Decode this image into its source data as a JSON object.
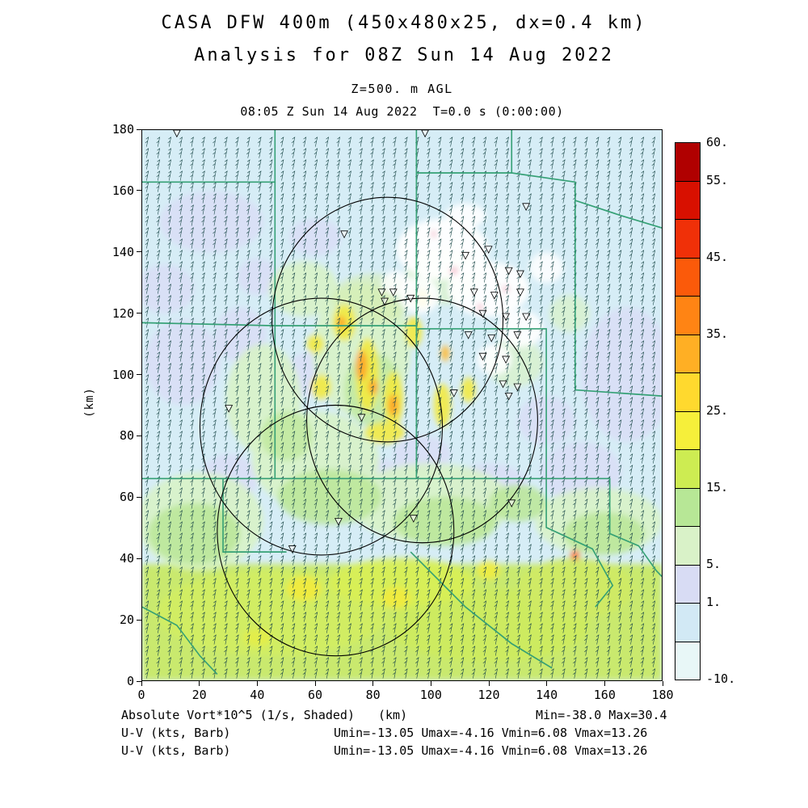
{
  "chart_data": {
    "type": "heatmap",
    "titles": {
      "main": "CASA DFW 400m (450x480x25, dx=0.4 km)",
      "sub": "Analysis for 08Z Sun 14 Aug 2022",
      "level": "Z=500. m AGL",
      "time": "08:05 Z Sun 14 Aug 2022  T=0.0 s (0:00:00)"
    },
    "field_name": "Absolute Vort*10^5 (1/s, Shaded)",
    "stats": {
      "min": -38.0,
      "max": 30.4,
      "umin": -13.05,
      "umax": -4.16,
      "vmin": 6.08,
      "vmax": 13.26,
      "wind_units": "kts"
    },
    "footer": {
      "line1_left": "Absolute Vort*10^5 (1/s, Shaded)",
      "line1_center": "(km)",
      "line1_right": "Min=-38.0 Max=30.4",
      "uv_lines": [
        {
          "label": "U-V (kts, Barb)",
          "stats": "Umin=-13.05 Umax=-4.16 Vmin=6.08 Vmax=13.26"
        },
        {
          "label": "U-V (kts, Barb)",
          "stats": "Umin=-13.05 Umax=-4.16 Vmin=6.08 Vmax=13.26"
        }
      ]
    },
    "axes": {
      "xlabel": "(km)",
      "ylabel": "(km)",
      "x_range": [
        0,
        180
      ],
      "y_range": [
        0,
        180
      ],
      "x_ticks": [
        0,
        20,
        40,
        60,
        80,
        100,
        120,
        140,
        160,
        180
      ],
      "y_ticks": [
        0,
        20,
        40,
        60,
        80,
        100,
        120,
        140,
        160,
        180
      ]
    },
    "colorbar": {
      "levels": [
        -10,
        1,
        5,
        15,
        25,
        35,
        45,
        55,
        60
      ],
      "tick_labels": [
        "-10.",
        "1.",
        "5.",
        "15.",
        "25.",
        "35.",
        "45.",
        "55.",
        "60."
      ],
      "ticks": [
        {
          "label": "60.",
          "f": 1.0
        },
        {
          "label": "55.",
          "f": 0.9286
        },
        {
          "label": "45.",
          "f": 0.7857
        },
        {
          "label": "35.",
          "f": 0.6429
        },
        {
          "label": "25.",
          "f": 0.5
        },
        {
          "label": "15.",
          "f": 0.3571
        },
        {
          "label": "5.",
          "f": 0.2143
        },
        {
          "label": "1.",
          "f": 0.1429
        },
        {
          "label": "-10.",
          "f": 0.0
        }
      ],
      "segment_colors": [
        "#e8f7f7",
        "#d2e9f5",
        "#d8dcf4",
        "#d9f2c8",
        "#b7e796",
        "#cdec52",
        "#f6ef3a",
        "#ffd92e",
        "#ffaf24",
        "#ff8414",
        "#fb5a0a",
        "#f03008",
        "#d81000",
        "#b00000"
      ]
    },
    "map": {
      "base_color": "#d6edf6",
      "boundary_color": "#35a075",
      "band": {
        "y0": 0,
        "y1": 38,
        "color": "#c9e96e"
      },
      "regions": [
        {
          "x": 24,
          "y": 150,
          "rx": 18,
          "ry": 10,
          "c": "#dadef6"
        },
        {
          "x": 8,
          "y": 128,
          "rx": 10,
          "ry": 8,
          "c": "#dadef6"
        },
        {
          "x": 14,
          "y": 104,
          "rx": 13,
          "ry": 14,
          "c": "#dadef6"
        },
        {
          "x": 34,
          "y": 113,
          "rx": 9,
          "ry": 9,
          "c": "#dadef6"
        },
        {
          "x": 57,
          "y": 100,
          "rx": 8,
          "ry": 7,
          "c": "#dadef6"
        },
        {
          "x": 168,
          "y": 100,
          "rx": 16,
          "ry": 22,
          "c": "#dadef6"
        },
        {
          "x": 152,
          "y": 68,
          "rx": 14,
          "ry": 10,
          "c": "#dadef6"
        },
        {
          "x": 120,
          "y": 63,
          "rx": 14,
          "ry": 8,
          "c": "#dadef6"
        },
        {
          "x": 78,
          "y": 64,
          "rx": 16,
          "ry": 9,
          "c": "#dadef6"
        },
        {
          "x": 30,
          "y": 66,
          "rx": 10,
          "ry": 8,
          "c": "#dadef6"
        },
        {
          "x": 97,
          "y": 74,
          "rx": 10,
          "ry": 6,
          "c": "#dadef6"
        },
        {
          "x": 140,
          "y": 85,
          "rx": 10,
          "ry": 8,
          "c": "#dadef6"
        },
        {
          "x": 60,
          "y": 145,
          "rx": 9,
          "ry": 6,
          "c": "#dadef6"
        },
        {
          "x": 40,
          "y": 132,
          "rx": 7,
          "ry": 6,
          "c": "#dadef6"
        },
        {
          "x": 20,
          "y": 52,
          "rx": 22,
          "ry": 16,
          "c": "#d8f2c6"
        },
        {
          "x": 60,
          "y": 72,
          "rx": 22,
          "ry": 16,
          "c": "#d8f2c6"
        },
        {
          "x": 100,
          "y": 58,
          "rx": 28,
          "ry": 13,
          "c": "#d8f2c6"
        },
        {
          "x": 158,
          "y": 52,
          "rx": 22,
          "ry": 11,
          "c": "#d8f2c6"
        },
        {
          "x": 42,
          "y": 92,
          "rx": 13,
          "ry": 18,
          "c": "#d8f2c6"
        },
        {
          "x": 76,
          "y": 108,
          "rx": 17,
          "ry": 22,
          "c": "#d8f2c6"
        },
        {
          "x": 56,
          "y": 128,
          "rx": 12,
          "ry": 9,
          "c": "#d8f2c6"
        },
        {
          "x": 104,
          "y": 132,
          "rx": 13,
          "ry": 9,
          "c": "#d8f2c6",
          "o": 0.7
        },
        {
          "x": 129,
          "y": 104,
          "rx": 10,
          "ry": 8,
          "c": "#d8f2c6",
          "o": 0.7
        },
        {
          "x": 148,
          "y": 120,
          "rx": 7,
          "ry": 6,
          "c": "#d8f2c6",
          "o": 0.7
        },
        {
          "x": 18,
          "y": 48,
          "rx": 16,
          "ry": 10,
          "c": "#bce79a"
        },
        {
          "x": 65,
          "y": 60,
          "rx": 18,
          "ry": 9,
          "c": "#bce79a"
        },
        {
          "x": 105,
          "y": 52,
          "rx": 18,
          "ry": 8,
          "c": "#bce79a"
        },
        {
          "x": 160,
          "y": 48,
          "rx": 14,
          "ry": 7,
          "c": "#bce79a"
        },
        {
          "x": 80,
          "y": 95,
          "rx": 10,
          "ry": 12,
          "c": "#bce79a",
          "o": 0.75
        },
        {
          "x": 50,
          "y": 80,
          "rx": 9,
          "ry": 8,
          "c": "#bce79a",
          "o": 0.75
        },
        {
          "x": 130,
          "y": 58,
          "rx": 10,
          "ry": 6,
          "c": "#bce79a"
        },
        {
          "x": 45,
          "y": 22,
          "rx": 40,
          "ry": 14,
          "c": "#d2ed62"
        },
        {
          "x": 120,
          "y": 18,
          "rx": 35,
          "ry": 12,
          "c": "#cdea5e"
        },
        {
          "x": 90,
          "y": 32,
          "rx": 25,
          "ry": 8,
          "c": "#d8ef55"
        },
        {
          "x": 150,
          "y": 30,
          "rx": 20,
          "ry": 10,
          "c": "#cfe964"
        },
        {
          "x": 56,
          "y": 30,
          "rx": 6,
          "ry": 4,
          "c": "#f2ea3c"
        },
        {
          "x": 88,
          "y": 27,
          "rx": 5,
          "ry": 3.5,
          "c": "#f2ea3c"
        },
        {
          "x": 40,
          "y": 14,
          "rx": 5,
          "ry": 3,
          "c": "#e4ee48"
        },
        {
          "x": 120,
          "y": 36,
          "rx": 4,
          "ry": 3,
          "c": "#f0ec40"
        },
        {
          "x": 80,
          "y": 125,
          "rx": 14,
          "ry": 8,
          "c": "#d5efae",
          "o": 0.6
        },
        {
          "x": 78,
          "y": 100,
          "rx": 4,
          "ry": 12,
          "c": "#f3e93e"
        },
        {
          "x": 87,
          "y": 92,
          "rx": 3.5,
          "ry": 9,
          "c": "#f3e93e"
        },
        {
          "x": 70,
          "y": 117,
          "rx": 4,
          "ry": 6,
          "c": "#f3e93e"
        },
        {
          "x": 94,
          "y": 114,
          "rx": 3,
          "ry": 5,
          "c": "#f3e93e"
        },
        {
          "x": 62,
          "y": 96,
          "rx": 3.5,
          "ry": 4,
          "c": "#f3e93e"
        },
        {
          "x": 104,
          "y": 90,
          "rx": 3,
          "ry": 7,
          "c": "#f3e93e"
        },
        {
          "x": 84,
          "y": 81,
          "rx": 7,
          "ry": 3.5,
          "c": "#f3e93e"
        },
        {
          "x": 97,
          "y": 125,
          "rx": 3,
          "ry": 3,
          "c": "#f3e93e"
        },
        {
          "x": 113,
          "y": 95,
          "rx": 2.5,
          "ry": 4,
          "c": "#f3e93e"
        },
        {
          "x": 60,
          "y": 110,
          "rx": 3,
          "ry": 3,
          "c": "#f3e93e"
        },
        {
          "x": 76,
          "y": 103,
          "rx": 2,
          "ry": 5,
          "c": "#ffa028"
        },
        {
          "x": 87,
          "y": 90,
          "rx": 1.8,
          "ry": 3.5,
          "c": "#ffa028"
        },
        {
          "x": 80,
          "y": 96,
          "rx": 1.6,
          "ry": 2.5,
          "c": "#ffa028"
        },
        {
          "x": 69,
          "y": 117,
          "rx": 1.5,
          "ry": 2,
          "c": "#ffa028"
        },
        {
          "x": 105,
          "y": 107,
          "rx": 1.5,
          "ry": 2.5,
          "c": "#ffb830"
        },
        {
          "x": 150,
          "y": 41,
          "rx": 1.6,
          "ry": 1.6,
          "c": "#ff5a20"
        },
        {
          "x": 104,
          "y": 141,
          "rx": 16,
          "ry": 10,
          "c": "#ffffff",
          "o": 0.95
        },
        {
          "x": 120,
          "y": 128,
          "rx": 14,
          "ry": 9,
          "c": "#ffffff",
          "o": 0.95
        },
        {
          "x": 96,
          "y": 126,
          "rx": 7,
          "ry": 6,
          "c": "#ffffff",
          "o": 0.9
        },
        {
          "x": 131,
          "y": 115,
          "rx": 8,
          "ry": 6,
          "c": "#ffffff",
          "o": 0.9
        },
        {
          "x": 112,
          "y": 152,
          "rx": 7,
          "ry": 4,
          "c": "#ffffff",
          "o": 0.9
        },
        {
          "x": 122,
          "y": 105,
          "rx": 6,
          "ry": 5,
          "c": "#ffffff",
          "o": 0.9
        },
        {
          "x": 88,
          "y": 130,
          "rx": 5,
          "ry": 4,
          "c": "#ffffff",
          "o": 0.85
        },
        {
          "x": 140,
          "y": 135,
          "rx": 6,
          "ry": 5,
          "c": "#ffffff",
          "o": 0.85
        },
        {
          "x": 108,
          "y": 134,
          "rx": 1.4,
          "ry": 1.2,
          "c": "#f4bece",
          "o": 1
        },
        {
          "x": 117,
          "y": 122,
          "rx": 1.2,
          "ry": 1,
          "c": "#f4bece",
          "o": 1
        },
        {
          "x": 101,
          "y": 146,
          "rx": 1,
          "ry": 1,
          "c": "#f4bece",
          "o": 1
        },
        {
          "x": 126,
          "y": 128,
          "rx": 1.2,
          "ry": 1,
          "c": "#f4bece",
          "o": 1
        }
      ],
      "boundaries": [
        [
          [
            0,
            163
          ],
          [
            46,
            163
          ],
          [
            46,
            180
          ]
        ],
        [
          [
            46,
            163
          ],
          [
            46,
            116
          ],
          [
            0,
            117
          ]
        ],
        [
          [
            46,
            116
          ],
          [
            95,
            116
          ]
        ],
        [
          [
            95,
            180
          ],
          [
            95,
            66
          ]
        ],
        [
          [
            95,
            166
          ],
          [
            128,
            166
          ],
          [
            128,
            180
          ]
        ],
        [
          [
            128,
            166
          ],
          [
            150,
            163
          ],
          [
            150,
            95
          ]
        ],
        [
          [
            150,
            157
          ],
          [
            166,
            152
          ],
          [
            180,
            148
          ]
        ],
        [
          [
            95,
            115
          ],
          [
            140,
            115
          ],
          [
            140,
            66
          ]
        ],
        [
          [
            150,
            95
          ],
          [
            180,
            93
          ]
        ],
        [
          [
            46,
            116
          ],
          [
            46,
            66
          ],
          [
            0,
            66
          ]
        ],
        [
          [
            28,
            66
          ],
          [
            28,
            42
          ],
          [
            50,
            42
          ]
        ],
        [
          [
            46,
            66
          ],
          [
            140,
            66
          ]
        ],
        [
          [
            140,
            66
          ],
          [
            162,
            66
          ],
          [
            162,
            48
          ],
          [
            172,
            44
          ],
          [
            178,
            36
          ],
          [
            180,
            34
          ]
        ],
        [
          [
            140,
            66
          ],
          [
            140,
            50
          ],
          [
            156,
            43
          ],
          [
            163,
            31
          ],
          [
            157,
            24
          ]
        ],
        [
          [
            93,
            42
          ],
          [
            112,
            24
          ],
          [
            128,
            12
          ],
          [
            142,
            4
          ]
        ],
        [
          [
            0,
            24
          ],
          [
            12,
            18
          ],
          [
            20,
            8
          ],
          [
            26,
            2
          ]
        ]
      ],
      "circles": [
        [
          85,
          118,
          40
        ],
        [
          62,
          83,
          42
        ],
        [
          97,
          85,
          40
        ],
        [
          67,
          49,
          41
        ]
      ],
      "markers": [
        [
          12,
          179
        ],
        [
          98,
          179
        ],
        [
          70,
          146
        ],
        [
          133,
          155
        ],
        [
          83,
          127
        ],
        [
          87,
          127
        ],
        [
          84,
          124
        ],
        [
          93,
          125
        ],
        [
          112,
          139
        ],
        [
          120,
          141
        ],
        [
          127,
          134
        ],
        [
          131,
          133
        ],
        [
          115,
          127
        ],
        [
          122,
          126
        ],
        [
          131,
          127
        ],
        [
          118,
          120
        ],
        [
          126,
          119
        ],
        [
          133,
          119
        ],
        [
          113,
          113
        ],
        [
          121,
          112
        ],
        [
          130,
          113
        ],
        [
          118,
          106
        ],
        [
          126,
          105
        ],
        [
          125,
          97
        ],
        [
          130,
          96
        ],
        [
          127,
          93
        ],
        [
          108,
          94
        ],
        [
          30,
          89
        ],
        [
          76,
          86
        ],
        [
          52,
          43
        ],
        [
          68,
          52
        ],
        [
          94,
          53
        ],
        [
          128,
          58
        ]
      ],
      "barbs": {
        "dx": 3.9,
        "dy": 3.7,
        "color": "#1d4a4a"
      }
    }
  }
}
